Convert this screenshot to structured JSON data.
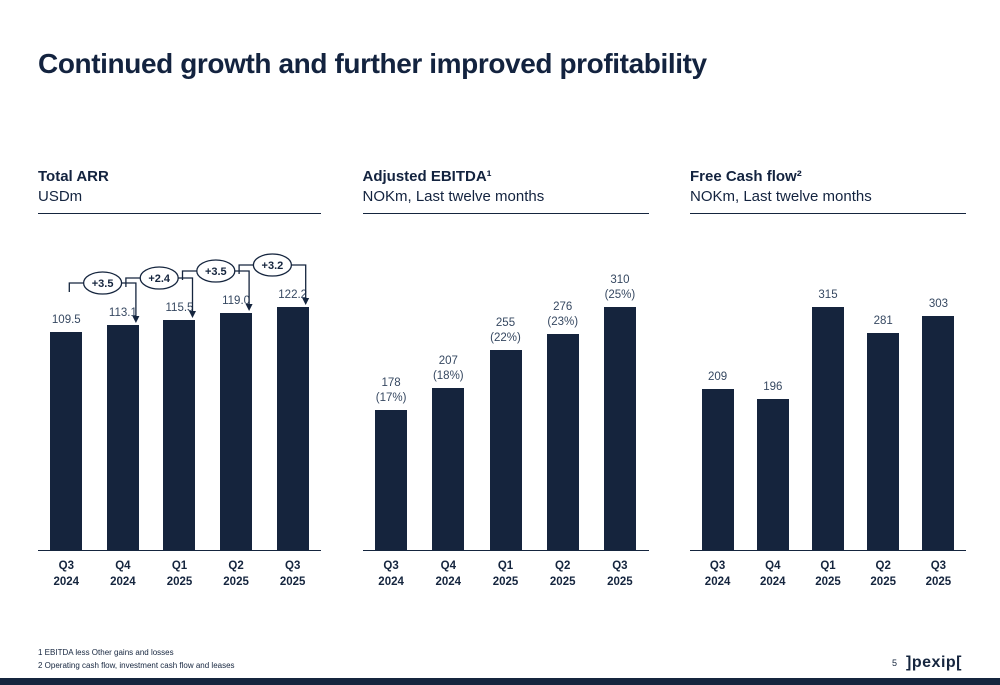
{
  "slide": {
    "title": "Continued growth and further improved profitability",
    "page_number": "5",
    "logo_text": "]pexip[",
    "footnotes": [
      "1 EBITDA less Other gains and losses",
      "2 Operating cash flow, investment cash flow and leases"
    ],
    "accent_color": "#15253e"
  },
  "chart_data": [
    {
      "type": "bar",
      "title": "Total ARR",
      "subtitle": "USDm",
      "categories": [
        "Q3\n2024",
        "Q4\n2024",
        "Q1\n2025",
        "Q2\n2025",
        "Q3\n2025"
      ],
      "values": [
        109.5,
        113.1,
        115.5,
        119.0,
        122.2
      ],
      "bar_labels": [
        "109.5",
        "113.1",
        "115.5",
        "119.0",
        "122.2"
      ],
      "deltas": [
        "+3.5",
        "+2.4",
        "+3.5",
        "+3.2"
      ],
      "ylim": [
        0,
        130
      ],
      "grid": false,
      "bar_color": "#15243d"
    },
    {
      "type": "bar",
      "title": "Adjusted EBITDA¹",
      "subtitle": "NOKm, Last twelve months",
      "categories": [
        "Q3\n2024",
        "Q4\n2024",
        "Q1\n2025",
        "Q2\n2025",
        "Q3\n2025"
      ],
      "values": [
        178,
        207,
        255,
        276,
        310
      ],
      "bar_labels": [
        "178\n(17%)",
        "207\n(18%)",
        "255\n(22%)",
        "276\n(23%)",
        "310\n(25%)"
      ],
      "margin_pct": [
        17,
        18,
        22,
        23,
        25
      ],
      "ylim": [
        0,
        330
      ],
      "grid": false,
      "bar_color": "#15243d"
    },
    {
      "type": "bar",
      "title": "Free Cash flow²",
      "subtitle": "NOKm, Last twelve months",
      "categories": [
        "Q3\n2024",
        "Q4\n2024",
        "Q1\n2025",
        "Q2\n2025",
        "Q3\n2025"
      ],
      "values": [
        209,
        196,
        315,
        281,
        303
      ],
      "bar_labels": [
        "209",
        "196",
        "315",
        "281",
        "303"
      ],
      "ylim": [
        0,
        330
      ],
      "grid": false,
      "bar_color": "#15243d"
    }
  ]
}
